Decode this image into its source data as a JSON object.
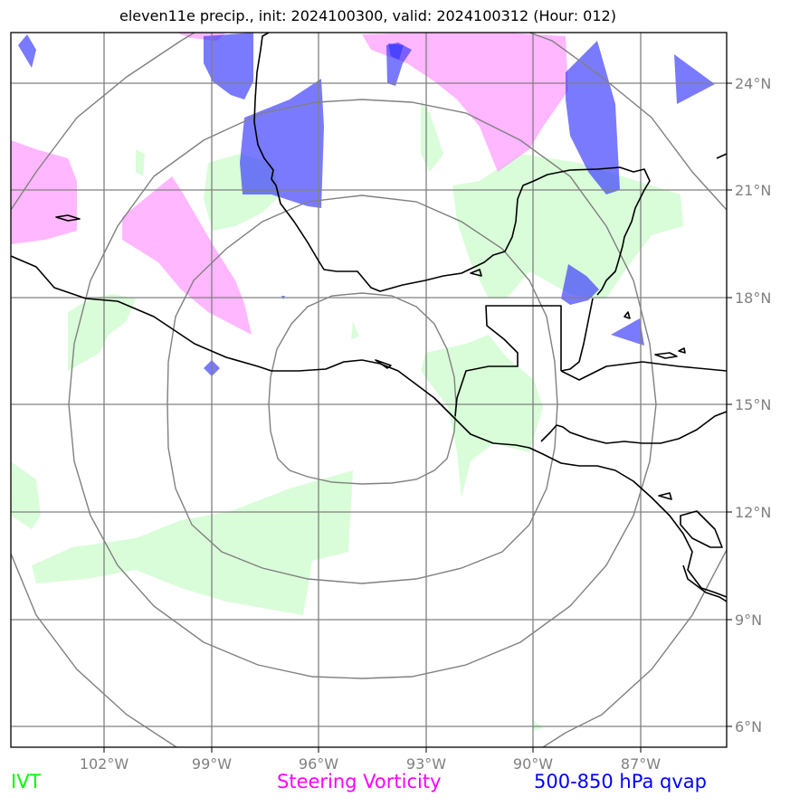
{
  "title": "eleven11e precip., init: 2024100300, valid: 2024100312 (Hour: 012)",
  "map": {
    "lon_ticks": [
      "102°W",
      "99°W",
      "96°W",
      "93°W",
      "90°W",
      "87°W"
    ],
    "lat_ticks": [
      "24°N",
      "21°N",
      "18°N",
      "15°N",
      "12°N",
      "9°N",
      "6°N"
    ],
    "range_rings": 4,
    "colors": {
      "ivt": "#ccfccc",
      "steering_vorticity": "#ff99ff",
      "qvap": "#3333ff",
      "coastline": "#000000",
      "gridline": "#808080",
      "ring": "#808080"
    }
  },
  "legend": {
    "ivt": {
      "label": "IVT",
      "color": "#00ff00"
    },
    "steering": {
      "label": "Steering Vorticity",
      "color": "#ff00ff"
    },
    "qvap": {
      "label": "500-850 hPa qvap",
      "color": "#0000ff"
    }
  }
}
